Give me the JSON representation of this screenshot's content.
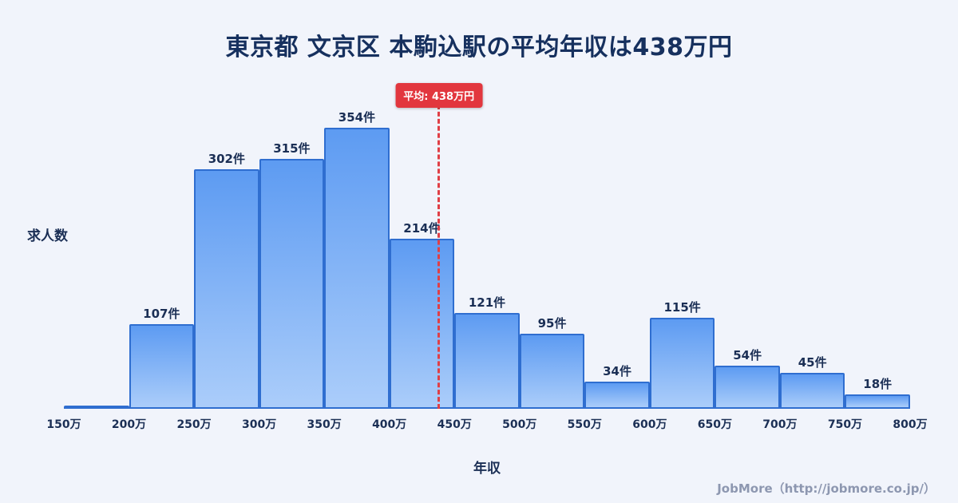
{
  "chart_data": {
    "type": "bar",
    "title": "東京都 文京区 本駒込駅の平均年収は438万円",
    "xlabel": "年収",
    "ylabel": "求人数",
    "bin_start": 150,
    "bin_width": 50,
    "bin_edge_labels": [
      "150万",
      "200万",
      "250万",
      "300万",
      "350万",
      "400万",
      "450万",
      "500万",
      "550万",
      "600万",
      "650万",
      "700万",
      "750万",
      "800万"
    ],
    "values": [
      4,
      107,
      302,
      315,
      354,
      214,
      121,
      95,
      34,
      115,
      54,
      45,
      18
    ],
    "bar_labels": [
      "",
      "107件",
      "302件",
      "315件",
      "354件",
      "214件",
      "121件",
      "95件",
      "34件",
      "115件",
      "54件",
      "45件",
      "18件"
    ],
    "ylim": [
      0,
      370
    ],
    "grid": false,
    "legend": "none",
    "average": {
      "value": 438,
      "label": "平均: 438万円"
    }
  },
  "colors": {
    "background": "#f1f4fb",
    "bar_fill_top": "#5d9bf2",
    "bar_fill_bottom": "#abcdfa",
    "bar_border": "#2f6ed0",
    "title_text": "#16305e",
    "axis_text": "#1b2f55",
    "average_line": "#e03f46",
    "badge_background": "#e2363e",
    "badge_text": "#ffffff",
    "footer_text": "#8d97b0"
  },
  "footer": {
    "credit": "JobMore（http://jobmore.co.jp/）"
  }
}
